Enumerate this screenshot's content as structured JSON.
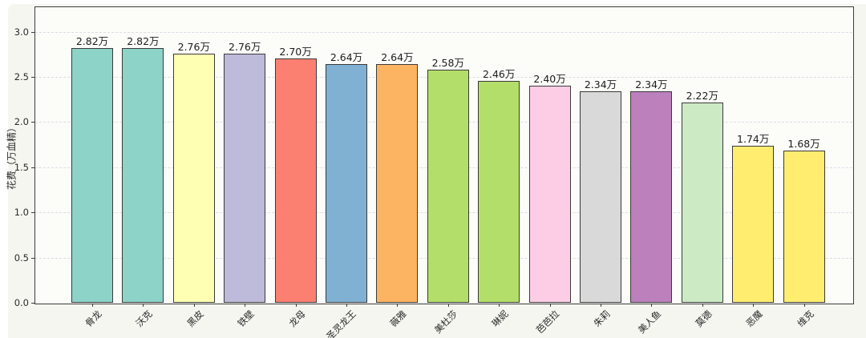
{
  "figure": {
    "panel_background": "#f6f6f1",
    "plot_background": "#fcfcf9",
    "frame_color": "#3c3c3c",
    "grid_color": "#dcdce6"
  },
  "chart_data": {
    "type": "bar",
    "title": "",
    "xlabel": "",
    "ylabel": "花费（万血精）",
    "unit_suffix": "万",
    "categories": [
      "骨龙",
      "沃克",
      "黑皮",
      "铁壁",
      "龙母",
      "圣灵龙王",
      "薇雅",
      "美杜莎",
      "琳妮",
      "芭芭拉",
      "朱莉",
      "美人鱼",
      "莫德",
      "恶魔",
      "维克"
    ],
    "values": [
      2.82,
      2.82,
      2.76,
      2.76,
      2.7,
      2.64,
      2.64,
      2.58,
      2.46,
      2.4,
      2.34,
      2.34,
      2.22,
      1.74,
      1.68
    ],
    "value_labels": [
      "2.82万",
      "2.82万",
      "2.76万",
      "2.76万",
      "2.70万",
      "2.64万",
      "2.64万",
      "2.58万",
      "2.46万",
      "2.40万",
      "2.34万",
      "2.34万",
      "2.22万",
      "1.74万",
      "1.68万"
    ],
    "bar_colors": [
      "#8DD3C7",
      "#8DD3C7",
      "#FFFFB3",
      "#BEBADA",
      "#FB8072",
      "#80B1D3",
      "#FDB462",
      "#B3DE69",
      "#B3DE69",
      "#FCCDE5",
      "#D9D9D9",
      "#BC80BD",
      "#CCEBC5",
      "#FFED6F",
      "#FFED6F"
    ],
    "yticks": [
      "0.0",
      "0.5",
      "1.0",
      "1.5",
      "2.0",
      "2.5",
      "3.0"
    ],
    "ytick_values": [
      0.0,
      0.5,
      1.0,
      1.5,
      2.0,
      2.5,
      3.0
    ],
    "ylim": [
      0,
      3.28
    ],
    "grid": "horizontal-dashed",
    "legend": "none",
    "x_label_rotation_deg": 45
  }
}
